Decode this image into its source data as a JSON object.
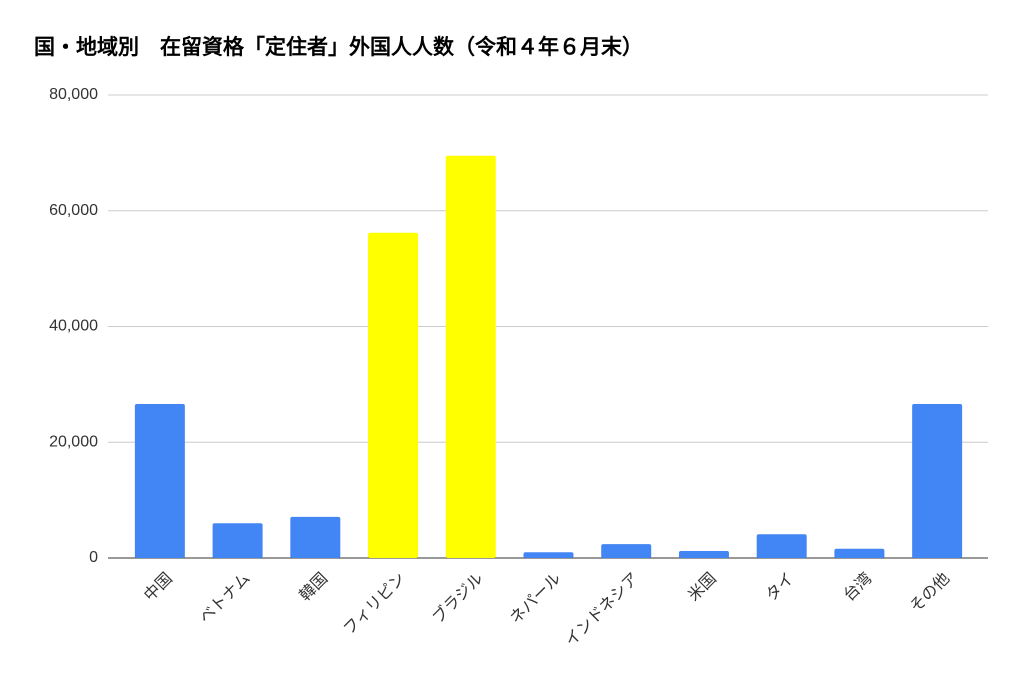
{
  "chart_data": {
    "type": "bar",
    "title": "国・地域別　在留資格「定住者」外国人人数（令和４年６月末）",
    "categories": [
      "中国",
      "ベトナム",
      "韓国",
      "フィリピン",
      "ブラジル",
      "ネパール",
      "インドネシア",
      "米国",
      "タイ",
      "台湾",
      "その他"
    ],
    "values": [
      26600,
      6000,
      7100,
      56200,
      69500,
      1000,
      2400,
      1200,
      4100,
      1600,
      26600
    ],
    "colors": [
      "#4285f4",
      "#4285f4",
      "#4285f4",
      "#ffff00",
      "#ffff00",
      "#4285f4",
      "#4285f4",
      "#4285f4",
      "#4285f4",
      "#4285f4",
      "#4285f4"
    ],
    "ylim": [
      0,
      80000
    ],
    "yticks": [
      0,
      {
        "value": 20000,
        "label": "20,000"
      },
      {
        "value": 40000,
        "label": "40,000"
      },
      {
        "value": 60000,
        "label": "60,000"
      },
      {
        "value": 80000,
        "label": "80,000"
      }
    ],
    "grid": true
  }
}
